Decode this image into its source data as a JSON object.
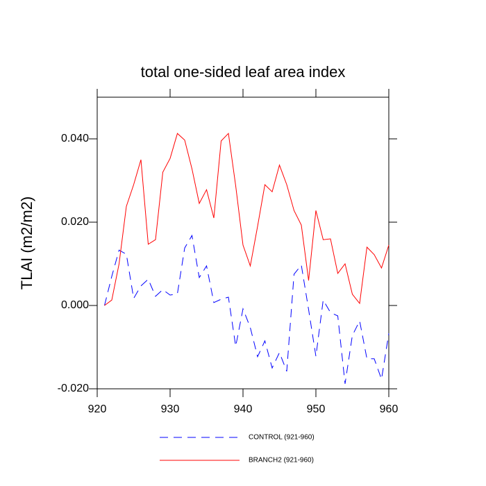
{
  "chart_data": {
    "type": "line",
    "title": "total one-sided leaf area index",
    "y_label": "TLAI  (m2/m2)",
    "x": [
      921,
      922,
      923,
      924,
      925,
      926,
      927,
      928,
      929,
      930,
      931,
      932,
      933,
      934,
      935,
      936,
      937,
      938,
      939,
      940,
      941,
      942,
      943,
      944,
      945,
      946,
      947,
      948,
      949,
      950,
      951,
      952,
      953,
      954,
      955,
      956,
      957,
      958,
      959,
      960
    ],
    "series": [
      {
        "name": "CONTROL (921-960)",
        "color": "#0000ff",
        "linestyle": "dashed",
        "values": [
          0.0,
          0.007,
          0.0133,
          0.0123,
          0.0017,
          0.0047,
          0.0063,
          0.0022,
          0.0038,
          0.0025,
          0.0028,
          0.0138,
          0.0168,
          0.0067,
          0.0095,
          0.0007,
          0.0015,
          0.002,
          -0.0098,
          -0.0008,
          -0.0053,
          -0.0123,
          -0.0085,
          -0.015,
          -0.0113,
          -0.0158,
          0.0075,
          0.0097,
          -0.001,
          -0.0122,
          0.0013,
          -0.0017,
          -0.0025,
          -0.0188,
          -0.0072,
          -0.0037,
          -0.0128,
          -0.0128,
          -0.0177,
          -0.0067
        ]
      },
      {
        "name": "BRANCH2 (921-960)",
        "color": "#ff0000",
        "linestyle": "solid",
        "values": [
          0.0,
          0.0013,
          0.01,
          0.0238,
          0.029,
          0.035,
          0.0147,
          0.0158,
          0.032,
          0.0353,
          0.0413,
          0.0397,
          0.0328,
          0.0245,
          0.0278,
          0.021,
          0.0395,
          0.0413,
          0.0287,
          0.0145,
          0.0095,
          0.019,
          0.029,
          0.0273,
          0.0337,
          0.029,
          0.0228,
          0.0193,
          0.006,
          0.0228,
          0.0158,
          0.016,
          0.0077,
          0.01,
          0.0027,
          0.0005,
          0.014,
          0.0122,
          0.009,
          0.0145
        ]
      }
    ],
    "xlim": [
      920,
      960
    ],
    "xticks": [
      920,
      930,
      940,
      950,
      960
    ],
    "ylim": [
      -0.02,
      0.05
    ],
    "yticks": [
      {
        "value": -0.02,
        "label": "-0.020"
      },
      {
        "value": 0,
        "label": "0.000"
      },
      {
        "value": 0.02,
        "label": "0.020"
      },
      {
        "value": 0.04,
        "label": "0.040"
      }
    ],
    "grid": false
  }
}
